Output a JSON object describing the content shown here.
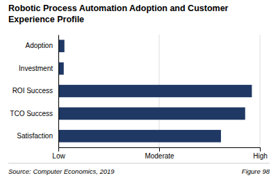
{
  "chart_data": {
    "type": "bar",
    "orientation": "horizontal",
    "title": "Robotic Process Automation Adoption and Customer Experience Profile",
    "categories": [
      "Adoption",
      "Investment",
      "ROI Success",
      "TCO Success",
      "Satisfaction"
    ],
    "values": [
      0.09,
      0.08,
      2.88,
      2.78,
      2.42
    ],
    "color": "#1F3864",
    "xlim": [
      0,
      3
    ],
    "xticks": [
      {
        "value": 0,
        "label": "Low"
      },
      {
        "value": 1.5,
        "label": "Moderate"
      },
      {
        "value": 3,
        "label": "High"
      }
    ],
    "grid": true,
    "annotations": [
      "Source: Computer Economics, 2019",
      "Figure 98"
    ]
  }
}
